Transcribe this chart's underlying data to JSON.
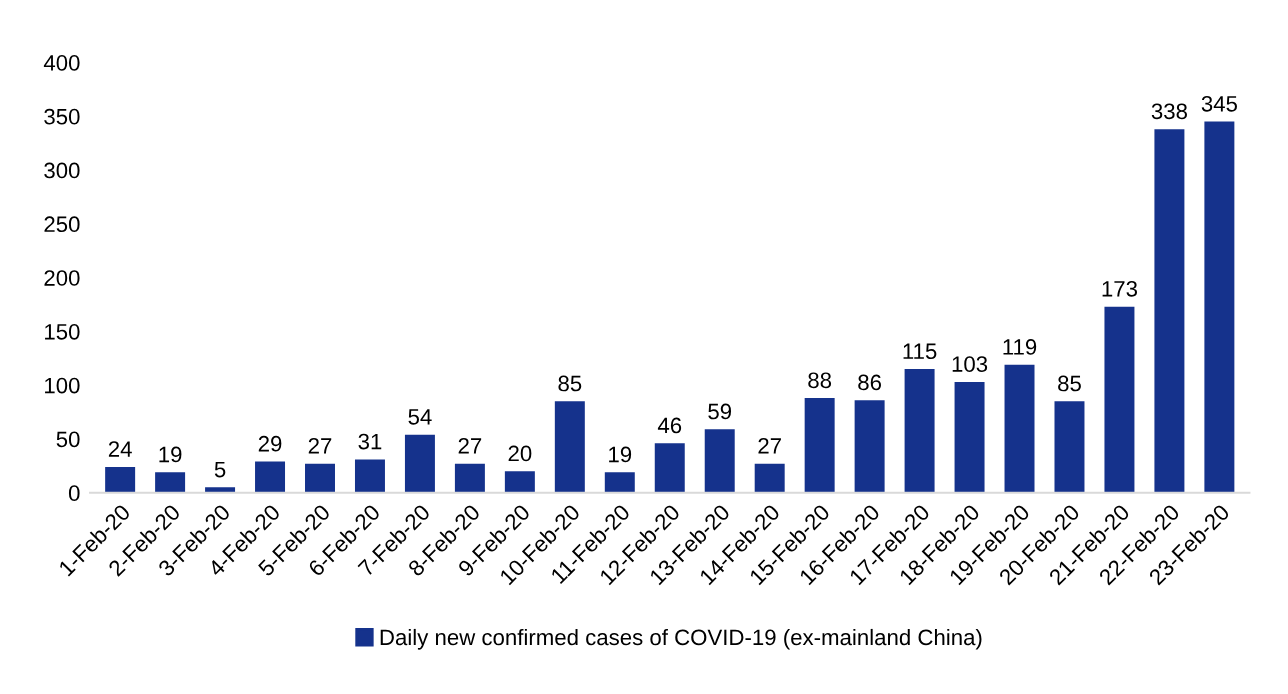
{
  "chart_data": {
    "type": "bar",
    "categories": [
      "1-Feb-20",
      "2-Feb-20",
      "3-Feb-20",
      "4-Feb-20",
      "5-Feb-20",
      "6-Feb-20",
      "7-Feb-20",
      "8-Feb-20",
      "9-Feb-20",
      "10-Feb-20",
      "11-Feb-20",
      "12-Feb-20",
      "13-Feb-20",
      "14-Feb-20",
      "15-Feb-20",
      "16-Feb-20",
      "17-Feb-20",
      "18-Feb-20",
      "19-Feb-20",
      "20-Feb-20",
      "21-Feb-20",
      "22-Feb-20",
      "23-Feb-20"
    ],
    "series": [
      {
        "name": "Daily new confirmed cases of COVID-19 (ex-mainland China)",
        "color": "#15328c",
        "values": [
          24,
          19,
          5,
          29,
          27,
          31,
          54,
          27,
          20,
          85,
          19,
          46,
          59,
          27,
          88,
          86,
          115,
          103,
          119,
          85,
          173,
          338,
          345
        ]
      }
    ],
    "ylim": [
      0,
      400
    ],
    "yticks": [
      0,
      50,
      100,
      150,
      200,
      250,
      300,
      350,
      400
    ],
    "data_labels": true,
    "legend": "bottom",
    "grid": false
  }
}
